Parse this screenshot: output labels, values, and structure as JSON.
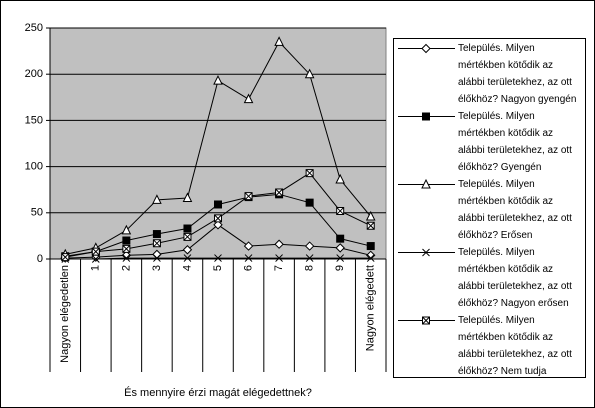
{
  "chart_data": {
    "type": "line",
    "x_label": "És mennyire érzi magát elégedettnek?",
    "categories": [
      "Nagyon elégedetlen",
      "1",
      "2",
      "3",
      "4",
      "5",
      "6",
      "7",
      "8",
      "9",
      "Nagyon elégedett"
    ],
    "ylim": [
      0,
      250
    ],
    "yticks": [
      0,
      50,
      100,
      150,
      200,
      250
    ],
    "grid": true,
    "plot_background": "#c0c0c0",
    "legend": "right",
    "series": [
      {
        "name": "Település. Milyen mértékben kötődik az alábbi területekhez, az ott élőkhöz? Nagyon gyengén",
        "color": "#000000",
        "marker": "diamond",
        "values": [
          1,
          2,
          4,
          5,
          10,
          37,
          14,
          16,
          14,
          12,
          4
        ]
      },
      {
        "name": "Település. Milyen mértékben kötődik az alábbi területekhez, az ott élőkhöz? Gyengén",
        "color": "#000000",
        "marker": "square",
        "values": [
          3,
          8,
          20,
          27,
          33,
          59,
          67,
          70,
          61,
          22,
          14
        ]
      },
      {
        "name": "Település. Milyen mértékben kötődik az alábbi területekhez, az ott élőkhöz? Erősen",
        "color": "#000000",
        "marker": "triangle",
        "values": [
          5,
          12,
          31,
          64,
          66,
          193,
          173,
          235,
          200,
          86,
          46
        ]
      },
      {
        "name": "Település. Milyen mértékben kötődik az alábbi területekhez, az ott élőkhöz? Nagyon erősen",
        "color": "#000000",
        "marker": "x",
        "values": [
          0,
          0,
          1,
          1,
          1,
          1,
          1,
          1,
          1,
          1,
          1
        ]
      },
      {
        "name": "Település. Milyen mértékben kötődik az alábbi területekhez, az ott élőkhöz? Nem tudja",
        "color": "#000000",
        "marker": "square-x",
        "values": [
          2,
          8,
          11,
          17,
          24,
          44,
          68,
          72,
          93,
          52,
          36
        ]
      }
    ]
  }
}
